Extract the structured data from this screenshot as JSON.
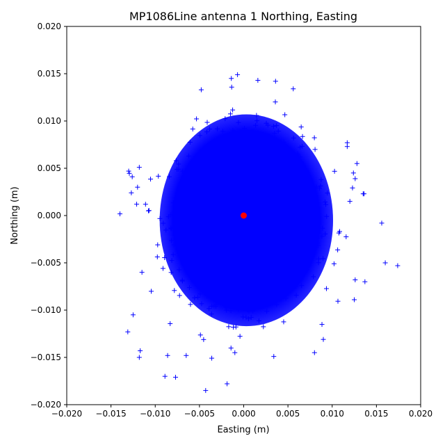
{
  "chart_data": {
    "type": "scatter",
    "title": "MP1086Line antenna 1 Northing, Easting",
    "xlabel": "Easting (m)",
    "ylabel": "Northing (m)",
    "xlim": [
      -0.02,
      0.02
    ],
    "ylim": [
      -0.02,
      0.02
    ],
    "xticks": [
      "−0.020",
      "−0.015",
      "−0.010",
      "−0.005",
      "0.000",
      "0.005",
      "0.010",
      "0.015",
      "0.020"
    ],
    "yticks": [
      "−0.020",
      "−0.015",
      "−0.010",
      "−0.005",
      "0.000",
      "0.005",
      "0.010",
      "0.015",
      "0.020"
    ],
    "grid": false,
    "series": [
      {
        "marker": "plus",
        "color": "#0000ff",
        "points": [
          [
            -0.013,
            0.0047
          ],
          [
            -0.0126,
            0.0041
          ],
          [
            -0.0127,
            0.0024
          ],
          [
            -0.0121,
            0.0012
          ],
          [
            -0.0118,
            0.0051
          ],
          [
            -0.0131,
            -0.0123
          ],
          [
            -0.0118,
            -0.015
          ],
          [
            -0.0089,
            -0.017
          ],
          [
            -0.0077,
            -0.0171
          ],
          [
            -0.0043,
            -0.0185
          ],
          [
            -0.0086,
            -0.0148
          ],
          [
            -0.0065,
            -0.0148
          ],
          [
            -0.001,
            -0.0145
          ],
          [
            0.0034,
            -0.0149
          ],
          [
            0.008,
            -0.0145
          ],
          [
            0.009,
            -0.0131
          ],
          [
            0.0156,
            -0.0008
          ],
          [
            0.016,
            -0.005
          ],
          [
            0.0174,
            -0.0053
          ],
          [
            0.0136,
            0.0023
          ],
          [
            0.0124,
            0.0045
          ],
          [
            0.0126,
            0.0039
          ],
          [
            0.0117,
            0.0077
          ],
          [
            0.0117,
            0.0073
          ],
          [
            -0.0014,
            0.0145
          ],
          [
            -0.0007,
            0.0149
          ],
          [
            0.0016,
            0.0143
          ],
          [
            0.0036,
            0.0142
          ],
          [
            0.0056,
            0.0134
          ],
          [
            -0.0048,
            0.0133
          ],
          [
            0.0125,
            -0.0089
          ],
          [
            0.0126,
            -0.0068
          ],
          [
            0.0137,
            -0.007
          ],
          [
            -0.0115,
            -0.006
          ],
          [
            -0.0125,
            -0.0105
          ],
          [
            -0.0117,
            -0.0143
          ],
          [
            0.012,
            0.0015
          ],
          [
            0.0128,
            0.0055
          ],
          [
            0.0135,
            0.0023
          ],
          [
            -0.012,
            0.003
          ]
        ]
      },
      {
        "name": "",
        "marker": "circle",
        "color": "#ff0000",
        "points": [
          [
            0.0,
            0.0
          ]
        ]
      }
    ]
  }
}
